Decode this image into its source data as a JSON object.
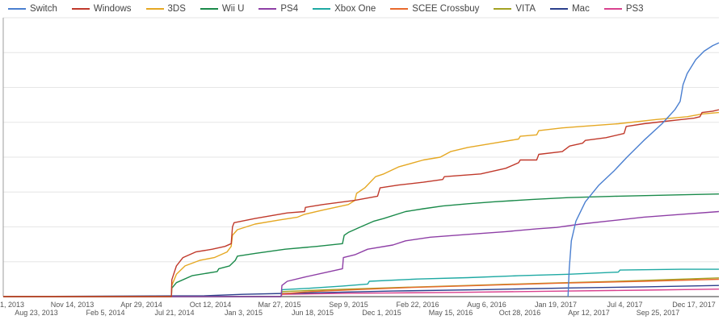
{
  "chart_data": {
    "type": "line",
    "title": "",
    "xlabel": "",
    "ylabel": "",
    "grid": true,
    "legend_position": "top",
    "x_axis": {
      "type": "date",
      "range": [
        "2013-05-31",
        "2018-03-02"
      ]
    },
    "y_axis": {
      "range": [
        0,
        100
      ],
      "tick_labels_shown": false,
      "gridlines": 8
    },
    "tick_labels_row1": [
      "1, 2013",
      "Nov 14, 2013",
      "Apr 29, 2014",
      "Oct 12, 2014",
      "Mar 27, 2015",
      "Sep 9, 2015",
      "Feb 22, 2016",
      "Aug 6, 2016",
      "Jan 19, 2017",
      "Jul 4, 2017",
      "Dec 17, 2017"
    ],
    "tick_labels_row2": [
      "Aug 23, 2013",
      "Feb 5, 2014",
      "Jul 21, 2014",
      "Jan 3, 2015",
      "Jun 18, 2015",
      "Dec 1, 2015",
      "May 15, 2016",
      "Oct 28, 2016",
      "Apr 12, 2017",
      "Sep 25, 2017"
    ],
    "series": [
      {
        "name": "Switch",
        "color": "#4a7fd0",
        "values": [
          [
            "2017-03-01",
            0
          ],
          [
            "2017-03-04",
            10
          ],
          [
            "2017-03-09",
            20
          ],
          [
            "2017-03-20",
            27
          ],
          [
            "2017-04-12",
            34
          ],
          [
            "2017-05-15",
            40
          ],
          [
            "2017-06-20",
            45
          ],
          [
            "2017-07-22",
            50
          ],
          [
            "2017-09-01",
            56
          ],
          [
            "2017-10-15",
            62
          ],
          [
            "2017-11-15",
            67
          ],
          [
            "2017-11-28",
            70
          ],
          [
            "2017-12-05",
            76
          ],
          [
            "2017-12-15",
            80
          ],
          [
            "2018-01-05",
            85
          ],
          [
            "2018-01-25",
            88
          ],
          [
            "2018-02-15",
            90
          ],
          [
            "2018-03-02",
            91
          ]
        ]
      },
      {
        "name": "Windows",
        "color": "#c0392b",
        "values": [
          [
            "2013-05-31",
            0
          ],
          [
            "2014-07-13",
            0
          ],
          [
            "2014-07-14",
            6
          ],
          [
            "2014-07-25",
            11
          ],
          [
            "2014-08-10",
            14
          ],
          [
            "2014-09-10",
            16
          ],
          [
            "2014-10-20",
            17
          ],
          [
            "2014-11-20",
            18
          ],
          [
            "2014-12-05",
            19
          ],
          [
            "2014-12-08",
            25
          ],
          [
            "2014-12-12",
            26.5
          ],
          [
            "2015-02-01",
            28
          ],
          [
            "2015-04-20",
            30
          ],
          [
            "2015-06-01",
            30.5
          ],
          [
            "2015-06-03",
            32
          ],
          [
            "2015-07-15",
            33
          ],
          [
            "2015-10-01",
            34.5
          ],
          [
            "2015-11-25",
            36
          ],
          [
            "2015-12-01",
            39
          ],
          [
            "2016-01-15",
            40
          ],
          [
            "2016-03-15",
            41
          ],
          [
            "2016-05-01",
            42
          ],
          [
            "2016-05-05",
            43
          ],
          [
            "2016-08-01",
            44
          ],
          [
            "2016-10-01",
            46
          ],
          [
            "2016-11-01",
            48
          ],
          [
            "2016-11-05",
            49
          ],
          [
            "2016-12-15",
            49
          ],
          [
            "2016-12-20",
            51
          ],
          [
            "2017-02-15",
            52
          ],
          [
            "2017-03-05",
            54
          ],
          [
            "2017-04-05",
            55
          ],
          [
            "2017-04-12",
            56
          ],
          [
            "2017-06-01",
            57
          ],
          [
            "2017-07-15",
            58.5
          ],
          [
            "2017-07-20",
            61
          ],
          [
            "2017-09-01",
            62
          ],
          [
            "2017-11-01",
            63
          ],
          [
            "2017-12-01",
            63.5
          ],
          [
            "2018-01-01",
            64
          ],
          [
            "2018-01-15",
            64.5
          ],
          [
            "2018-01-20",
            66
          ],
          [
            "2018-02-15",
            66.5
          ],
          [
            "2018-03-02",
            67
          ]
        ]
      },
      {
        "name": "3DS",
        "color": "#e5a823",
        "values": [
          [
            "2013-05-31",
            0
          ],
          [
            "2014-07-13",
            0
          ],
          [
            "2014-07-14",
            4
          ],
          [
            "2014-07-25",
            8
          ],
          [
            "2014-08-15",
            11
          ],
          [
            "2014-09-20",
            13
          ],
          [
            "2014-10-25",
            14
          ],
          [
            "2014-11-25",
            16
          ],
          [
            "2014-12-05",
            18
          ],
          [
            "2014-12-08",
            22
          ],
          [
            "2014-12-20",
            24
          ],
          [
            "2015-02-01",
            26
          ],
          [
            "2015-04-01",
            27.5
          ],
          [
            "2015-05-15",
            28.5
          ],
          [
            "2015-06-01",
            29.5
          ],
          [
            "2015-07-15",
            31
          ],
          [
            "2015-09-15",
            33
          ],
          [
            "2015-10-01",
            34.5
          ],
          [
            "2015-10-05",
            37
          ],
          [
            "2015-10-25",
            39
          ],
          [
            "2015-11-20",
            43
          ],
          [
            "2015-12-10",
            44
          ],
          [
            "2016-01-15",
            46.5
          ],
          [
            "2016-03-15",
            49
          ],
          [
            "2016-04-25",
            50
          ],
          [
            "2016-05-20",
            52
          ],
          [
            "2016-07-01",
            53.5
          ],
          [
            "2016-09-01",
            55
          ],
          [
            "2016-11-01",
            56.5
          ],
          [
            "2016-11-05",
            57.5
          ],
          [
            "2016-12-15",
            58
          ],
          [
            "2016-12-20",
            59.5
          ],
          [
            "2017-02-15",
            60.5
          ],
          [
            "2017-04-01",
            61
          ],
          [
            "2017-07-01",
            62
          ],
          [
            "2017-10-01",
            63.5
          ],
          [
            "2017-12-15",
            64.5
          ],
          [
            "2018-01-20",
            65.5
          ],
          [
            "2018-03-02",
            66
          ]
        ]
      },
      {
        "name": "Wii U",
        "color": "#1a8a4a",
        "values": [
          [
            "2013-05-31",
            0
          ],
          [
            "2014-07-13",
            0
          ],
          [
            "2014-07-14",
            3
          ],
          [
            "2014-07-25",
            5
          ],
          [
            "2014-09-01",
            7.5
          ],
          [
            "2014-11-01",
            9
          ],
          [
            "2014-11-05",
            10
          ],
          [
            "2014-12-01",
            11
          ],
          [
            "2014-12-15",
            13
          ],
          [
            "2014-12-20",
            14.5
          ],
          [
            "2015-02-01",
            15.5
          ],
          [
            "2015-04-15",
            17
          ],
          [
            "2015-07-01",
            18
          ],
          [
            "2015-09-01",
            19
          ],
          [
            "2015-09-05",
            22
          ],
          [
            "2015-09-15",
            23
          ],
          [
            "2015-10-15",
            25
          ],
          [
            "2015-11-15",
            27
          ],
          [
            "2015-12-10",
            28
          ],
          [
            "2016-02-01",
            30.5
          ],
          [
            "2016-03-15",
            31.5
          ],
          [
            "2016-05-01",
            32.5
          ],
          [
            "2016-07-01",
            33.3
          ],
          [
            "2016-09-01",
            34
          ],
          [
            "2016-12-01",
            34.8
          ],
          [
            "2017-03-01",
            35.5
          ],
          [
            "2017-07-01",
            36
          ],
          [
            "2017-12-01",
            36.5
          ],
          [
            "2018-03-02",
            36.8
          ]
        ]
      },
      {
        "name": "PS4",
        "color": "#8e3fa6",
        "values": [
          [
            "2013-05-31",
            0
          ],
          [
            "2015-04-05",
            0
          ],
          [
            "2015-04-07",
            4
          ],
          [
            "2015-04-20",
            5.5
          ],
          [
            "2015-06-01",
            7
          ],
          [
            "2015-08-01",
            9
          ],
          [
            "2015-09-01",
            10
          ],
          [
            "2015-09-03",
            14
          ],
          [
            "2015-10-01",
            15
          ],
          [
            "2015-11-01",
            17
          ],
          [
            "2016-01-01",
            18.5
          ],
          [
            "2016-02-01",
            20
          ],
          [
            "2016-04-01",
            21.3
          ],
          [
            "2016-07-01",
            22.3
          ],
          [
            "2016-10-01",
            23.3
          ],
          [
            "2016-12-15",
            24.3
          ],
          [
            "2017-02-01",
            24.8
          ],
          [
            "2017-04-01",
            26
          ],
          [
            "2017-06-01",
            27
          ],
          [
            "2017-09-01",
            28.5
          ],
          [
            "2017-12-01",
            29.5
          ],
          [
            "2018-03-02",
            30.5
          ]
        ]
      },
      {
        "name": "Xbox One",
        "color": "#1ea9a3",
        "values": [
          [
            "2013-05-31",
            0
          ],
          [
            "2015-04-05",
            0
          ],
          [
            "2015-04-07",
            2.5
          ],
          [
            "2015-06-15",
            3
          ],
          [
            "2015-09-01",
            3.8
          ],
          [
            "2015-11-01",
            4.5
          ],
          [
            "2015-11-05",
            5.5
          ],
          [
            "2016-03-01",
            6.3
          ],
          [
            "2016-07-01",
            6.8
          ],
          [
            "2016-11-01",
            7.5
          ],
          [
            "2017-03-01",
            8
          ],
          [
            "2017-07-01",
            8.8
          ],
          [
            "2017-07-05",
            9.5
          ],
          [
            "2017-12-01",
            9.8
          ],
          [
            "2018-03-02",
            9.8
          ]
        ]
      },
      {
        "name": "SCEE Crossbuy",
        "color": "#e8692c",
        "values": [
          [
            "2013-05-31",
            0
          ],
          [
            "2015-04-05",
            0
          ],
          [
            "2015-04-07",
            1
          ],
          [
            "2015-06-15",
            1.8
          ],
          [
            "2015-10-01",
            2.5
          ],
          [
            "2016-02-01",
            3.2
          ],
          [
            "2016-08-01",
            4
          ],
          [
            "2017-02-01",
            4.8
          ],
          [
            "2017-09-01",
            5.5
          ],
          [
            "2018-03-02",
            6.2
          ]
        ]
      },
      {
        "name": "VITA",
        "color": "#a3a222",
        "values": [
          [
            "2013-05-31",
            0
          ],
          [
            "2015-04-05",
            0
          ],
          [
            "2015-04-07",
            1.8
          ],
          [
            "2015-08-01",
            2.5
          ],
          [
            "2016-01-01",
            3.2
          ],
          [
            "2016-07-01",
            4
          ],
          [
            "2017-01-01",
            4.8
          ],
          [
            "2017-07-01",
            5.5
          ],
          [
            "2018-03-02",
            6.7
          ]
        ]
      },
      {
        "name": "Mac",
        "color": "#2b3f8c",
        "values": [
          [
            "2013-05-31",
            0
          ],
          [
            "2014-10-01",
            0.3
          ],
          [
            "2015-01-01",
            0.8
          ],
          [
            "2015-06-01",
            1.3
          ],
          [
            "2016-01-01",
            2
          ],
          [
            "2016-08-01",
            2.5
          ],
          [
            "2017-03-01",
            3.1
          ],
          [
            "2017-09-01",
            3.5
          ],
          [
            "2018-03-02",
            4
          ]
        ]
      },
      {
        "name": "PS3",
        "color": "#d9418e",
        "values": [
          [
            "2013-05-31",
            0
          ],
          [
            "2015-04-05",
            0
          ],
          [
            "2015-04-07",
            0.8
          ],
          [
            "2015-10-01",
            1.2
          ],
          [
            "2016-06-01",
            1.5
          ],
          [
            "2017-01-01",
            1.9
          ],
          [
            "2017-09-01",
            2.3
          ],
          [
            "2018-03-02",
            2.7
          ]
        ]
      }
    ]
  }
}
